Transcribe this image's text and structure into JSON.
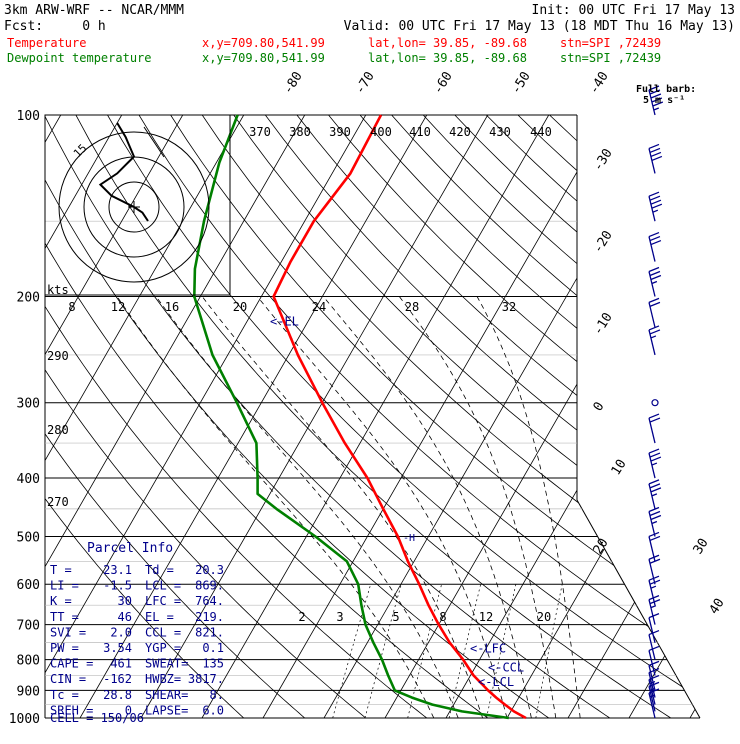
{
  "header": {
    "model": "3km ARW-WRF -- NCAR/MMM",
    "init": "Init: 00 UTC Fri 17 May 13",
    "fcst": "Fcst:     0 h",
    "valid": "Valid: 00 UTC Fri 17 May 13 (18 MDT Thu 16 May 13)",
    "temp_line": {
      "label": "Temperature",
      "xy": "x,y=709.80,541.99",
      "latlon": "lat,lon= 39.85, -89.68",
      "stn": "stn=SPI ,72439"
    },
    "dew_line": {
      "label": "Dewpoint temperature",
      "xy": "x,y=709.80,541.99",
      "latlon": "lat,lon= 39.85, -89.68",
      "stn": "stn=SPI ,72439"
    },
    "full_barb_1": "Full barb:",
    "full_barb_2": "5 m s⁻¹"
  },
  "colors": {
    "temperature": "#ff0000",
    "dewpoint": "#008000",
    "annotation": "#00008b",
    "wind": "#00008b"
  },
  "chart_data": {
    "type": "line",
    "diagram": "skew-T log-P",
    "y_axis": {
      "label": "",
      "ticks": [
        "100",
        "200",
        "300",
        "400",
        "500",
        "600",
        "700",
        "800",
        "900",
        "1000"
      ],
      "range_hPa": [
        1000,
        100
      ],
      "scale": "log"
    },
    "isotherm_labels": [
      "-80",
      "-70",
      "-60",
      "-50",
      "-40",
      "-30",
      "-20",
      "-10",
      "0",
      "10",
      "20",
      "30",
      "40"
    ],
    "theta_labels": [
      "370",
      "380",
      "390",
      "400",
      "410",
      "420",
      "430",
      "440"
    ],
    "mixing_ratio_labels": [
      "2",
      "3",
      "5",
      "8",
      "12",
      "20"
    ],
    "moist_labels_upper": [
      "8",
      "12",
      "16",
      "20",
      "24",
      "28",
      "32"
    ],
    "theta_left_labels": [
      "290",
      "280",
      "270"
    ],
    "series": [
      {
        "name": "Temperature",
        "points": [
          {
            "p": 1000,
            "t": 23.1
          },
          {
            "p": 975,
            "t": 20.5
          },
          {
            "p": 950,
            "t": 18.4
          },
          {
            "p": 925,
            "t": 16.3
          },
          {
            "p": 900,
            "t": 14.3
          },
          {
            "p": 850,
            "t": 10.5
          },
          {
            "p": 800,
            "t": 7.3
          },
          {
            "p": 750,
            "t": 3.5
          },
          {
            "p": 700,
            "t": 0.0
          },
          {
            "p": 650,
            "t": -3.5
          },
          {
            "p": 600,
            "t": -7.0
          },
          {
            "p": 550,
            "t": -11.0
          },
          {
            "p": 500,
            "t": -15.0
          },
          {
            "p": 450,
            "t": -20.0
          },
          {
            "p": 400,
            "t": -25.5
          },
          {
            "p": 350,
            "t": -32.5
          },
          {
            "p": 300,
            "t": -40.0
          },
          {
            "p": 250,
            "t": -48.5
          },
          {
            "p": 200,
            "t": -58.0
          },
          {
            "p": 175,
            "t": -58.5
          },
          {
            "p": 150,
            "t": -58.5
          },
          {
            "p": 125,
            "t": -57.0
          },
          {
            "p": 100,
            "t": -57.5
          }
        ]
      },
      {
        "name": "Dewpoint temperature",
        "points": [
          {
            "p": 1000,
            "t": 20.3
          },
          {
            "p": 975,
            "t": 12.0
          },
          {
            "p": 950,
            "t": 6.5
          },
          {
            "p": 925,
            "t": 2.5
          },
          {
            "p": 900,
            "t": -1.0
          },
          {
            "p": 850,
            "t": -3.5
          },
          {
            "p": 800,
            "t": -6.0
          },
          {
            "p": 750,
            "t": -9.0
          },
          {
            "p": 700,
            "t": -12.0
          },
          {
            "p": 650,
            "t": -14.5
          },
          {
            "p": 600,
            "t": -17.0
          },
          {
            "p": 550,
            "t": -21.0
          },
          {
            "p": 500,
            "t": -28.5
          },
          {
            "p": 450,
            "t": -37.5
          },
          {
            "p": 425,
            "t": -42.0
          },
          {
            "p": 400,
            "t": -43.5
          },
          {
            "p": 350,
            "t": -47.0
          },
          {
            "p": 300,
            "t": -54.0
          },
          {
            "p": 250,
            "t": -62.5
          },
          {
            "p": 200,
            "t": -71.0
          },
          {
            "p": 180,
            "t": -73.5
          },
          {
            "p": 150,
            "t": -76.5
          },
          {
            "p": 120,
            "t": -79.5
          },
          {
            "p": 100,
            "t": -81.0
          }
        ]
      }
    ],
    "levels_marked": [
      {
        "label": "<-EL",
        "p": 219
      },
      {
        "label": "<-LFC",
        "p": 764
      },
      {
        "label": "<-CCL",
        "p": 821
      },
      {
        "label": "<-LCL",
        "p": 869
      }
    ],
    "winds_knots": [
      {
        "p": 1000,
        "spd": 5
      },
      {
        "p": 975,
        "spd": 5
      },
      {
        "p": 950,
        "spd": 5
      },
      {
        "p": 925,
        "spd": 10
      },
      {
        "p": 900,
        "spd": 10
      },
      {
        "p": 850,
        "spd": 10
      },
      {
        "p": 800,
        "spd": 10
      },
      {
        "p": 750,
        "spd": 10
      },
      {
        "p": 700,
        "spd": 15
      },
      {
        "p": 650,
        "spd": 15
      },
      {
        "p": 600,
        "spd": 20
      },
      {
        "p": 550,
        "spd": 20
      },
      {
        "p": 500,
        "spd": 25
      },
      {
        "p": 450,
        "spd": 25
      },
      {
        "p": 400,
        "spd": 25
      },
      {
        "p": 350,
        "spd": 20
      },
      {
        "p": 300,
        "spd": 0
      },
      {
        "p": 250,
        "spd": 15
      },
      {
        "p": 225,
        "spd": 20
      },
      {
        "p": 200,
        "spd": 25
      },
      {
        "p": 175,
        "spd": 30
      },
      {
        "p": 150,
        "spd": 35
      },
      {
        "p": 125,
        "spd": 40
      },
      {
        "p": 100,
        "spd": 45
      }
    ],
    "hodograph": {
      "units": "kts",
      "ring_label": "15",
      "points": [
        [
          5,
          -5
        ],
        [
          3,
          -2
        ],
        [
          0,
          0
        ],
        [
          -8,
          4
        ],
        [
          -12,
          8
        ],
        [
          -6,
          12
        ],
        [
          0,
          18
        ],
        [
          -3,
          25
        ],
        [
          -6,
          30
        ]
      ]
    }
  },
  "parcel_info": {
    "title": "Parcel Info",
    "rows": [
      {
        "l": "T   =",
        "lv": "23.1",
        "r": "Td  =",
        "rv": "20.3"
      },
      {
        "l": "LI  =",
        "lv": "-1.5",
        "r": "LCL =",
        "rv": "869."
      },
      {
        "l": "K   =",
        "lv": "30",
        "r": "LFC =",
        "rv": "764."
      },
      {
        "l": "TT  =",
        "lv": "46",
        "r": "EL  =",
        "rv": "219."
      },
      {
        "l": "SVI =",
        "lv": "2.0",
        "r": "CCL =",
        "rv": "821."
      },
      {
        "l": "PW  =",
        "lv": "3.54",
        "r": "YGP =",
        "rv": "0.1"
      },
      {
        "l": "CAPE =",
        "lv": "461",
        "r": "SWEAT=",
        "rv": "135"
      },
      {
        "l": "CIN  =",
        "lv": "-162",
        "r": "HWBZ=",
        "rv": "3817."
      },
      {
        "l": "Tc  =",
        "lv": "28.8",
        "r": "SHEAR=",
        "rv": "8."
      },
      {
        "l": "SREH =",
        "lv": "0",
        "r": "LAPSE=",
        "rv": "6.0"
      }
    ],
    "cell": "CELL = 150/06"
  }
}
